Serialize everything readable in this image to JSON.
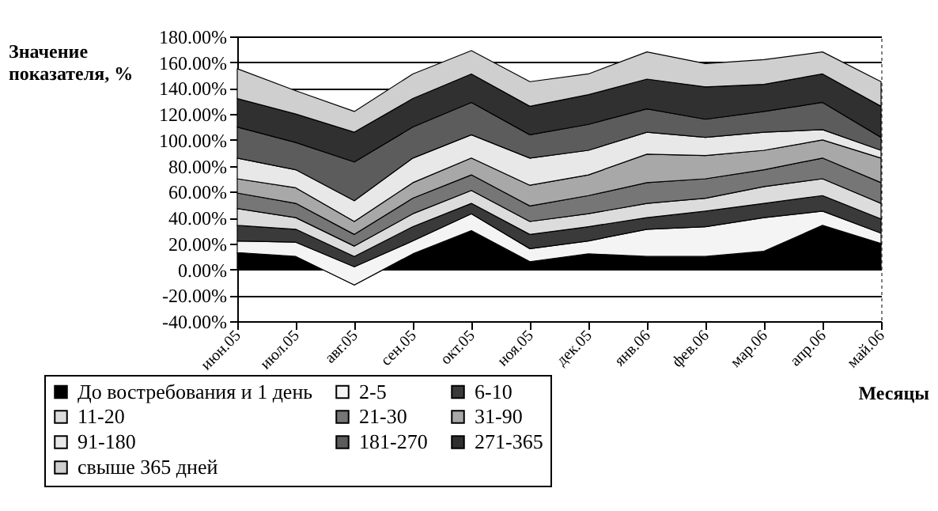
{
  "chart_data": {
    "type": "area",
    "stacked": true,
    "ylabel": "Значение показателя, %",
    "xlabel": "Месяцы",
    "categories": [
      "июн.05",
      "июл.05",
      "авг.05",
      "сен.05",
      "окт.05",
      "ноя.05",
      "дек.05",
      "янв.06",
      "фев.06",
      "мар.06",
      "апр.06",
      "май.06"
    ],
    "series": [
      {
        "name": "До востребования и 1 день",
        "color": "#000000",
        "values": [
          13,
          10,
          -12,
          12,
          30,
          6,
          12,
          10,
          10,
          14,
          34,
          20
        ]
      },
      {
        "name": "2-5",
        "color": "#f4f4f4",
        "values": [
          9,
          11,
          14,
          10,
          13,
          10,
          10,
          21,
          23,
          26,
          11,
          8
        ]
      },
      {
        "name": "6-10",
        "color": "#3a3a3a",
        "values": [
          12,
          10,
          8,
          11,
          8,
          11,
          11,
          9,
          12,
          11,
          12,
          11
        ]
      },
      {
        "name": "11-20",
        "color": "#dcdcdc",
        "values": [
          13,
          9,
          8,
          10,
          10,
          10,
          10,
          11,
          10,
          13,
          13,
          12
        ]
      },
      {
        "name": "21-30",
        "color": "#767676",
        "values": [
          12,
          11,
          9,
          12,
          12,
          12,
          14,
          16,
          15,
          13,
          16,
          16
        ]
      },
      {
        "name": "31-90",
        "color": "#a8a8a8",
        "values": [
          11,
          12,
          10,
          12,
          13,
          16,
          16,
          22,
          18,
          15,
          14,
          19
        ]
      },
      {
        "name": "91-180",
        "color": "#e8e8e8",
        "values": [
          16,
          14,
          16,
          19,
          18,
          21,
          19,
          17,
          14,
          14,
          8,
          6
        ]
      },
      {
        "name": "181-270",
        "color": "#5c5c5c",
        "values": [
          24,
          21,
          30,
          24,
          25,
          18,
          20,
          18,
          14,
          16,
          21,
          10
        ]
      },
      {
        "name": "271-365",
        "color": "#303030",
        "values": [
          22,
          22,
          23,
          22,
          22,
          22,
          23,
          23,
          25,
          21,
          22,
          24
        ]
      },
      {
        "name": "свыше 365 дней",
        "color": "#cfcfcf",
        "values": [
          23,
          18,
          16,
          19,
          18,
          19,
          16,
          21,
          18,
          19,
          17,
          19
        ]
      }
    ],
    "ylim": [
      -40,
      180
    ],
    "yticks": [
      {
        "value": -40,
        "label": "-40.00%"
      },
      {
        "value": -20,
        "label": "-20.00%"
      },
      {
        "value": 0,
        "label": "0.00%"
      },
      {
        "value": 20,
        "label": "20.00%"
      },
      {
        "value": 40,
        "label": "40.00%"
      },
      {
        "value": 60,
        "label": "60.00%"
      },
      {
        "value": 80,
        "label": "80.00%"
      },
      {
        "value": 100,
        "label": "100.00%"
      },
      {
        "value": 120,
        "label": "120.00%"
      },
      {
        "value": 140,
        "label": "140.00%"
      },
      {
        "value": 160,
        "label": "160.00%"
      },
      {
        "value": 180,
        "label": "180.00%"
      }
    ],
    "grid": "y",
    "legend": "bottom"
  }
}
